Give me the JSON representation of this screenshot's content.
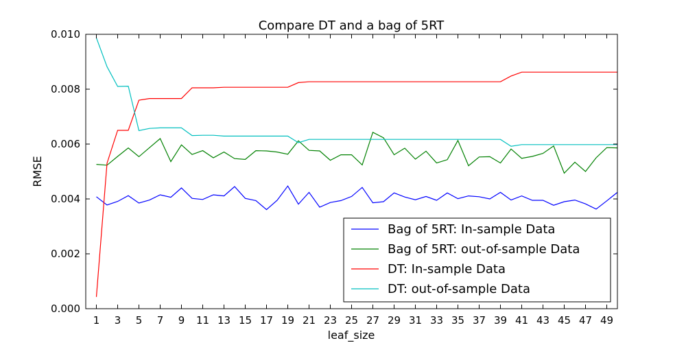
{
  "chart_data": {
    "type": "line",
    "title": "Compare DT and a bag of 5RT",
    "xlabel": "leaf_size",
    "ylabel": "RMSE",
    "xlim": [
      0,
      50
    ],
    "ylim": [
      0.0,
      0.01
    ],
    "x_ticks": [
      1,
      3,
      5,
      7,
      9,
      11,
      13,
      15,
      17,
      19,
      21,
      23,
      25,
      27,
      29,
      31,
      33,
      35,
      37,
      39,
      41,
      43,
      45,
      47,
      49
    ],
    "y_ticks": [
      "0.000",
      "0.002",
      "0.004",
      "0.006",
      "0.008",
      "0.010"
    ],
    "y_tick_values": [
      0.0,
      0.002,
      0.004,
      0.006,
      0.008,
      0.01
    ],
    "legend_position": "lower-right",
    "grid": false,
    "x": [
      1,
      2,
      3,
      4,
      5,
      6,
      7,
      8,
      9,
      10,
      11,
      12,
      13,
      14,
      15,
      16,
      17,
      18,
      19,
      20,
      21,
      22,
      23,
      24,
      25,
      26,
      27,
      28,
      29,
      30,
      31,
      32,
      33,
      34,
      35,
      36,
      37,
      38,
      39,
      40,
      41,
      42,
      43,
      44,
      45,
      46,
      47,
      48,
      49,
      50
    ],
    "series": [
      {
        "name": "Bag of 5RT: In-sample Data",
        "color": "#0000ff",
        "values": [
          0.00408,
          0.00378,
          0.00391,
          0.00412,
          0.00385,
          0.00396,
          0.00415,
          0.00406,
          0.0044,
          0.00402,
          0.00398,
          0.00415,
          0.00411,
          0.00445,
          0.00402,
          0.00394,
          0.00361,
          0.00395,
          0.00447,
          0.00381,
          0.00424,
          0.0037,
          0.00387,
          0.00394,
          0.00409,
          0.00442,
          0.00386,
          0.0039,
          0.00422,
          0.00407,
          0.00397,
          0.00409,
          0.00395,
          0.00422,
          0.00401,
          0.00411,
          0.00408,
          0.004,
          0.00424,
          0.00396,
          0.00411,
          0.00395,
          0.00395,
          0.00377,
          0.0039,
          0.00396,
          0.00382,
          0.00363,
          0.00393,
          0.00424
        ]
      },
      {
        "name": "Bag of 5RT: out-of-sample Data",
        "color": "#008000",
        "values": [
          0.00526,
          0.00523,
          0.00555,
          0.00586,
          0.00554,
          0.00587,
          0.0062,
          0.00536,
          0.00597,
          0.00562,
          0.00576,
          0.0055,
          0.00571,
          0.00547,
          0.00544,
          0.00576,
          0.00575,
          0.00571,
          0.00563,
          0.00612,
          0.00577,
          0.00575,
          0.00541,
          0.00561,
          0.00561,
          0.00524,
          0.00643,
          0.00623,
          0.00561,
          0.00585,
          0.00545,
          0.00574,
          0.00531,
          0.00543,
          0.00613,
          0.00521,
          0.00553,
          0.00554,
          0.00531,
          0.00582,
          0.00548,
          0.00555,
          0.00566,
          0.00593,
          0.00494,
          0.00534,
          0.005,
          0.0055,
          0.00587,
          0.00586
        ]
      },
      {
        "name": "DT: In-sample Data",
        "color": "#ff0000",
        "values": [
          0.00043,
          0.0053,
          0.0065,
          0.0065,
          0.0076,
          0.00766,
          0.00766,
          0.00766,
          0.00766,
          0.00805,
          0.00805,
          0.00805,
          0.00807,
          0.00807,
          0.00807,
          0.00807,
          0.00807,
          0.00807,
          0.00807,
          0.00824,
          0.00827,
          0.00827,
          0.00827,
          0.00827,
          0.00827,
          0.00827,
          0.00827,
          0.00827,
          0.00827,
          0.00827,
          0.00827,
          0.00827,
          0.00827,
          0.00827,
          0.00827,
          0.00827,
          0.00827,
          0.00827,
          0.00827,
          0.00848,
          0.00862,
          0.00862,
          0.00862,
          0.00862,
          0.00862,
          0.00862,
          0.00862,
          0.00862,
          0.00862,
          0.00862
        ]
      },
      {
        "name": "DT: out-of-sample Data",
        "color": "#00bfbf",
        "values": [
          0.00987,
          0.00882,
          0.0081,
          0.00811,
          0.00649,
          0.00657,
          0.00659,
          0.00659,
          0.00659,
          0.00631,
          0.00632,
          0.00632,
          0.00629,
          0.00629,
          0.00629,
          0.00629,
          0.00629,
          0.00629,
          0.00629,
          0.00605,
          0.00617,
          0.00617,
          0.00617,
          0.00617,
          0.00617,
          0.00617,
          0.00617,
          0.00617,
          0.00617,
          0.00617,
          0.00617,
          0.00617,
          0.00617,
          0.00617,
          0.00617,
          0.00617,
          0.00617,
          0.00617,
          0.00617,
          0.00592,
          0.00598,
          0.00598,
          0.00598,
          0.00598,
          0.00598,
          0.00598,
          0.00598,
          0.00598,
          0.00598,
          0.00598
        ]
      }
    ]
  }
}
